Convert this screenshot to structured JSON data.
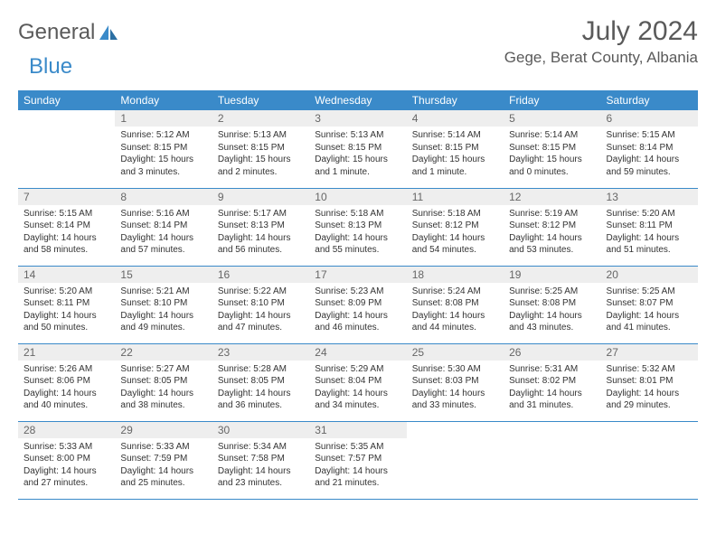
{
  "logo": {
    "text1": "General",
    "text2": "Blue"
  },
  "title": "July 2024",
  "location": "Gege, Berat County, Albania",
  "colors": {
    "header_bg": "#3a8ac9",
    "header_text": "#ffffff",
    "daynum_bg": "#eeeeee",
    "border": "#3a8ac9",
    "logo_gray": "#5a5a5a",
    "logo_blue": "#3a8ac9"
  },
  "weekdays": [
    "Sunday",
    "Monday",
    "Tuesday",
    "Wednesday",
    "Thursday",
    "Friday",
    "Saturday"
  ],
  "first_weekday_index": 1,
  "days": [
    {
      "n": 1,
      "sunrise": "5:12 AM",
      "sunset": "8:15 PM",
      "daylight": "15 hours and 3 minutes."
    },
    {
      "n": 2,
      "sunrise": "5:13 AM",
      "sunset": "8:15 PM",
      "daylight": "15 hours and 2 minutes."
    },
    {
      "n": 3,
      "sunrise": "5:13 AM",
      "sunset": "8:15 PM",
      "daylight": "15 hours and 1 minute."
    },
    {
      "n": 4,
      "sunrise": "5:14 AM",
      "sunset": "8:15 PM",
      "daylight": "15 hours and 1 minute."
    },
    {
      "n": 5,
      "sunrise": "5:14 AM",
      "sunset": "8:15 PM",
      "daylight": "15 hours and 0 minutes."
    },
    {
      "n": 6,
      "sunrise": "5:15 AM",
      "sunset": "8:14 PM",
      "daylight": "14 hours and 59 minutes."
    },
    {
      "n": 7,
      "sunrise": "5:15 AM",
      "sunset": "8:14 PM",
      "daylight": "14 hours and 58 minutes."
    },
    {
      "n": 8,
      "sunrise": "5:16 AM",
      "sunset": "8:14 PM",
      "daylight": "14 hours and 57 minutes."
    },
    {
      "n": 9,
      "sunrise": "5:17 AM",
      "sunset": "8:13 PM",
      "daylight": "14 hours and 56 minutes."
    },
    {
      "n": 10,
      "sunrise": "5:18 AM",
      "sunset": "8:13 PM",
      "daylight": "14 hours and 55 minutes."
    },
    {
      "n": 11,
      "sunrise": "5:18 AM",
      "sunset": "8:12 PM",
      "daylight": "14 hours and 54 minutes."
    },
    {
      "n": 12,
      "sunrise": "5:19 AM",
      "sunset": "8:12 PM",
      "daylight": "14 hours and 53 minutes."
    },
    {
      "n": 13,
      "sunrise": "5:20 AM",
      "sunset": "8:11 PM",
      "daylight": "14 hours and 51 minutes."
    },
    {
      "n": 14,
      "sunrise": "5:20 AM",
      "sunset": "8:11 PM",
      "daylight": "14 hours and 50 minutes."
    },
    {
      "n": 15,
      "sunrise": "5:21 AM",
      "sunset": "8:10 PM",
      "daylight": "14 hours and 49 minutes."
    },
    {
      "n": 16,
      "sunrise": "5:22 AM",
      "sunset": "8:10 PM",
      "daylight": "14 hours and 47 minutes."
    },
    {
      "n": 17,
      "sunrise": "5:23 AM",
      "sunset": "8:09 PM",
      "daylight": "14 hours and 46 minutes."
    },
    {
      "n": 18,
      "sunrise": "5:24 AM",
      "sunset": "8:08 PM",
      "daylight": "14 hours and 44 minutes."
    },
    {
      "n": 19,
      "sunrise": "5:25 AM",
      "sunset": "8:08 PM",
      "daylight": "14 hours and 43 minutes."
    },
    {
      "n": 20,
      "sunrise": "5:25 AM",
      "sunset": "8:07 PM",
      "daylight": "14 hours and 41 minutes."
    },
    {
      "n": 21,
      "sunrise": "5:26 AM",
      "sunset": "8:06 PM",
      "daylight": "14 hours and 40 minutes."
    },
    {
      "n": 22,
      "sunrise": "5:27 AM",
      "sunset": "8:05 PM",
      "daylight": "14 hours and 38 minutes."
    },
    {
      "n": 23,
      "sunrise": "5:28 AM",
      "sunset": "8:05 PM",
      "daylight": "14 hours and 36 minutes."
    },
    {
      "n": 24,
      "sunrise": "5:29 AM",
      "sunset": "8:04 PM",
      "daylight": "14 hours and 34 minutes."
    },
    {
      "n": 25,
      "sunrise": "5:30 AM",
      "sunset": "8:03 PM",
      "daylight": "14 hours and 33 minutes."
    },
    {
      "n": 26,
      "sunrise": "5:31 AM",
      "sunset": "8:02 PM",
      "daylight": "14 hours and 31 minutes."
    },
    {
      "n": 27,
      "sunrise": "5:32 AM",
      "sunset": "8:01 PM",
      "daylight": "14 hours and 29 minutes."
    },
    {
      "n": 28,
      "sunrise": "5:33 AM",
      "sunset": "8:00 PM",
      "daylight": "14 hours and 27 minutes."
    },
    {
      "n": 29,
      "sunrise": "5:33 AM",
      "sunset": "7:59 PM",
      "daylight": "14 hours and 25 minutes."
    },
    {
      "n": 30,
      "sunrise": "5:34 AM",
      "sunset": "7:58 PM",
      "daylight": "14 hours and 23 minutes."
    },
    {
      "n": 31,
      "sunrise": "5:35 AM",
      "sunset": "7:57 PM",
      "daylight": "14 hours and 21 minutes."
    }
  ],
  "labels": {
    "sunrise": "Sunrise:",
    "sunset": "Sunset:",
    "daylight": "Daylight:"
  }
}
